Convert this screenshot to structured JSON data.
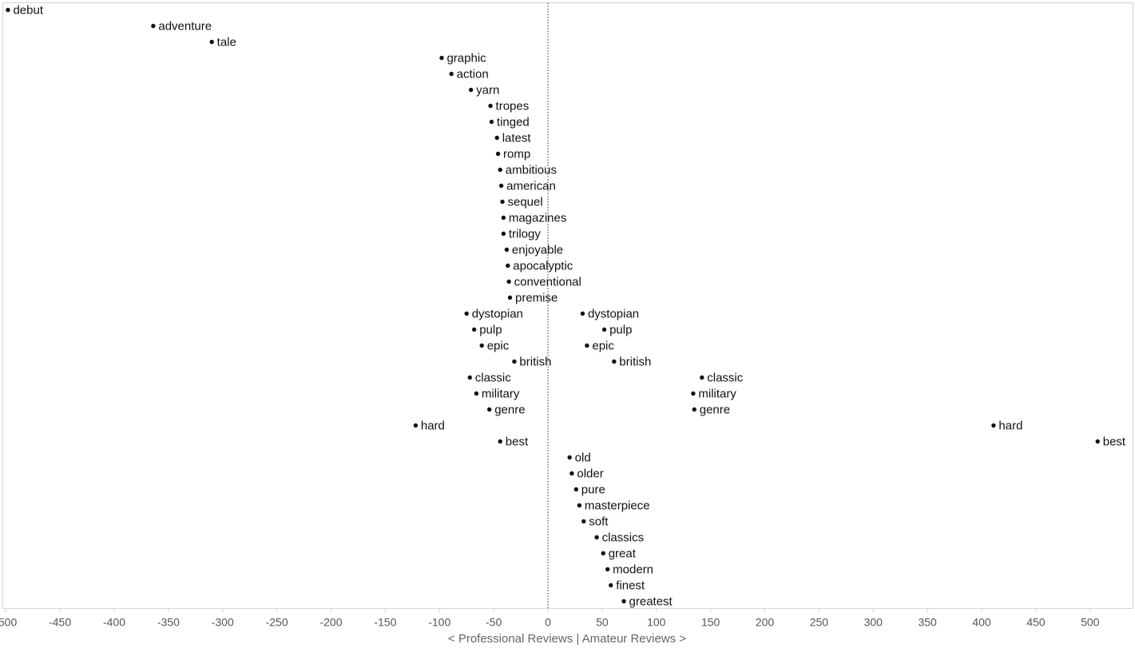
{
  "chart_data": {
    "type": "scatter",
    "title": "",
    "xlabel": "< Professional Reviews | Amateur Reviews >",
    "ylabel": "",
    "xlim": [
      -505,
      537
    ],
    "x_ticks": [
      -500,
      -450,
      -400,
      -350,
      -300,
      -250,
      -200,
      -150,
      -100,
      -50,
      0,
      50,
      100,
      150,
      200,
      250,
      300,
      350,
      400,
      450,
      500
    ],
    "y_axis": "categorical rows, one word per row, top to bottom",
    "zero_reference_line": "dotted vertical line at x = 0",
    "grid": false,
    "legend": "none",
    "point_color": "#111111",
    "points": [
      {
        "row": 0,
        "x": -498,
        "label": "debut"
      },
      {
        "row": 1,
        "x": -364,
        "label": "adventure"
      },
      {
        "row": 2,
        "x": -310,
        "label": "tale"
      },
      {
        "row": 3,
        "x": -98,
        "label": "graphic"
      },
      {
        "row": 4,
        "x": -89,
        "label": "action"
      },
      {
        "row": 5,
        "x": -71,
        "label": "yarn"
      },
      {
        "row": 6,
        "x": -53,
        "label": "tropes"
      },
      {
        "row": 7,
        "x": -52,
        "label": "tinged"
      },
      {
        "row": 8,
        "x": -47,
        "label": "latest"
      },
      {
        "row": 9,
        "x": -46,
        "label": "romp"
      },
      {
        "row": 10,
        "x": -44,
        "label": "ambitious"
      },
      {
        "row": 11,
        "x": -43,
        "label": "american"
      },
      {
        "row": 12,
        "x": -42,
        "label": "sequel"
      },
      {
        "row": 13,
        "x": -41,
        "label": "magazines"
      },
      {
        "row": 14,
        "x": -41,
        "label": "trilogy"
      },
      {
        "row": 15,
        "x": -38,
        "label": "enjoyable"
      },
      {
        "row": 16,
        "x": -37,
        "label": "apocalyptic"
      },
      {
        "row": 17,
        "x": -36,
        "label": "conventional"
      },
      {
        "row": 18,
        "x": -35,
        "label": "premise"
      },
      {
        "row": 19,
        "x": -75,
        "label": "dystopian"
      },
      {
        "row": 19,
        "x": 32,
        "label": "dystopian"
      },
      {
        "row": 20,
        "x": -68,
        "label": "pulp"
      },
      {
        "row": 20,
        "x": 52,
        "label": "pulp"
      },
      {
        "row": 21,
        "x": -61,
        "label": "epic"
      },
      {
        "row": 21,
        "x": 36,
        "label": "epic"
      },
      {
        "row": 22,
        "x": -31,
        "label": "british"
      },
      {
        "row": 22,
        "x": 61,
        "label": "british"
      },
      {
        "row": 23,
        "x": -72,
        "label": "classic"
      },
      {
        "row": 23,
        "x": 142,
        "label": "classic"
      },
      {
        "row": 24,
        "x": -66,
        "label": "military"
      },
      {
        "row": 24,
        "x": 134,
        "label": "military"
      },
      {
        "row": 25,
        "x": -54,
        "label": "genre"
      },
      {
        "row": 25,
        "x": 135,
        "label": "genre"
      },
      {
        "row": 26,
        "x": -122,
        "label": "hard"
      },
      {
        "row": 26,
        "x": 411,
        "label": "hard"
      },
      {
        "row": 27,
        "x": -44,
        "label": "best"
      },
      {
        "row": 27,
        "x": 507,
        "label": "best"
      },
      {
        "row": 28,
        "x": 20,
        "label": "old"
      },
      {
        "row": 29,
        "x": 22,
        "label": "older"
      },
      {
        "row": 30,
        "x": 26,
        "label": "pure"
      },
      {
        "row": 31,
        "x": 29,
        "label": "masterpiece"
      },
      {
        "row": 32,
        "x": 33,
        "label": "soft"
      },
      {
        "row": 33,
        "x": 45,
        "label": "classics"
      },
      {
        "row": 34,
        "x": 51,
        "label": "great"
      },
      {
        "row": 35,
        "x": 55,
        "label": "modern"
      },
      {
        "row": 36,
        "x": 58,
        "label": "finest"
      },
      {
        "row": 37,
        "x": 70,
        "label": "greatest"
      }
    ]
  }
}
